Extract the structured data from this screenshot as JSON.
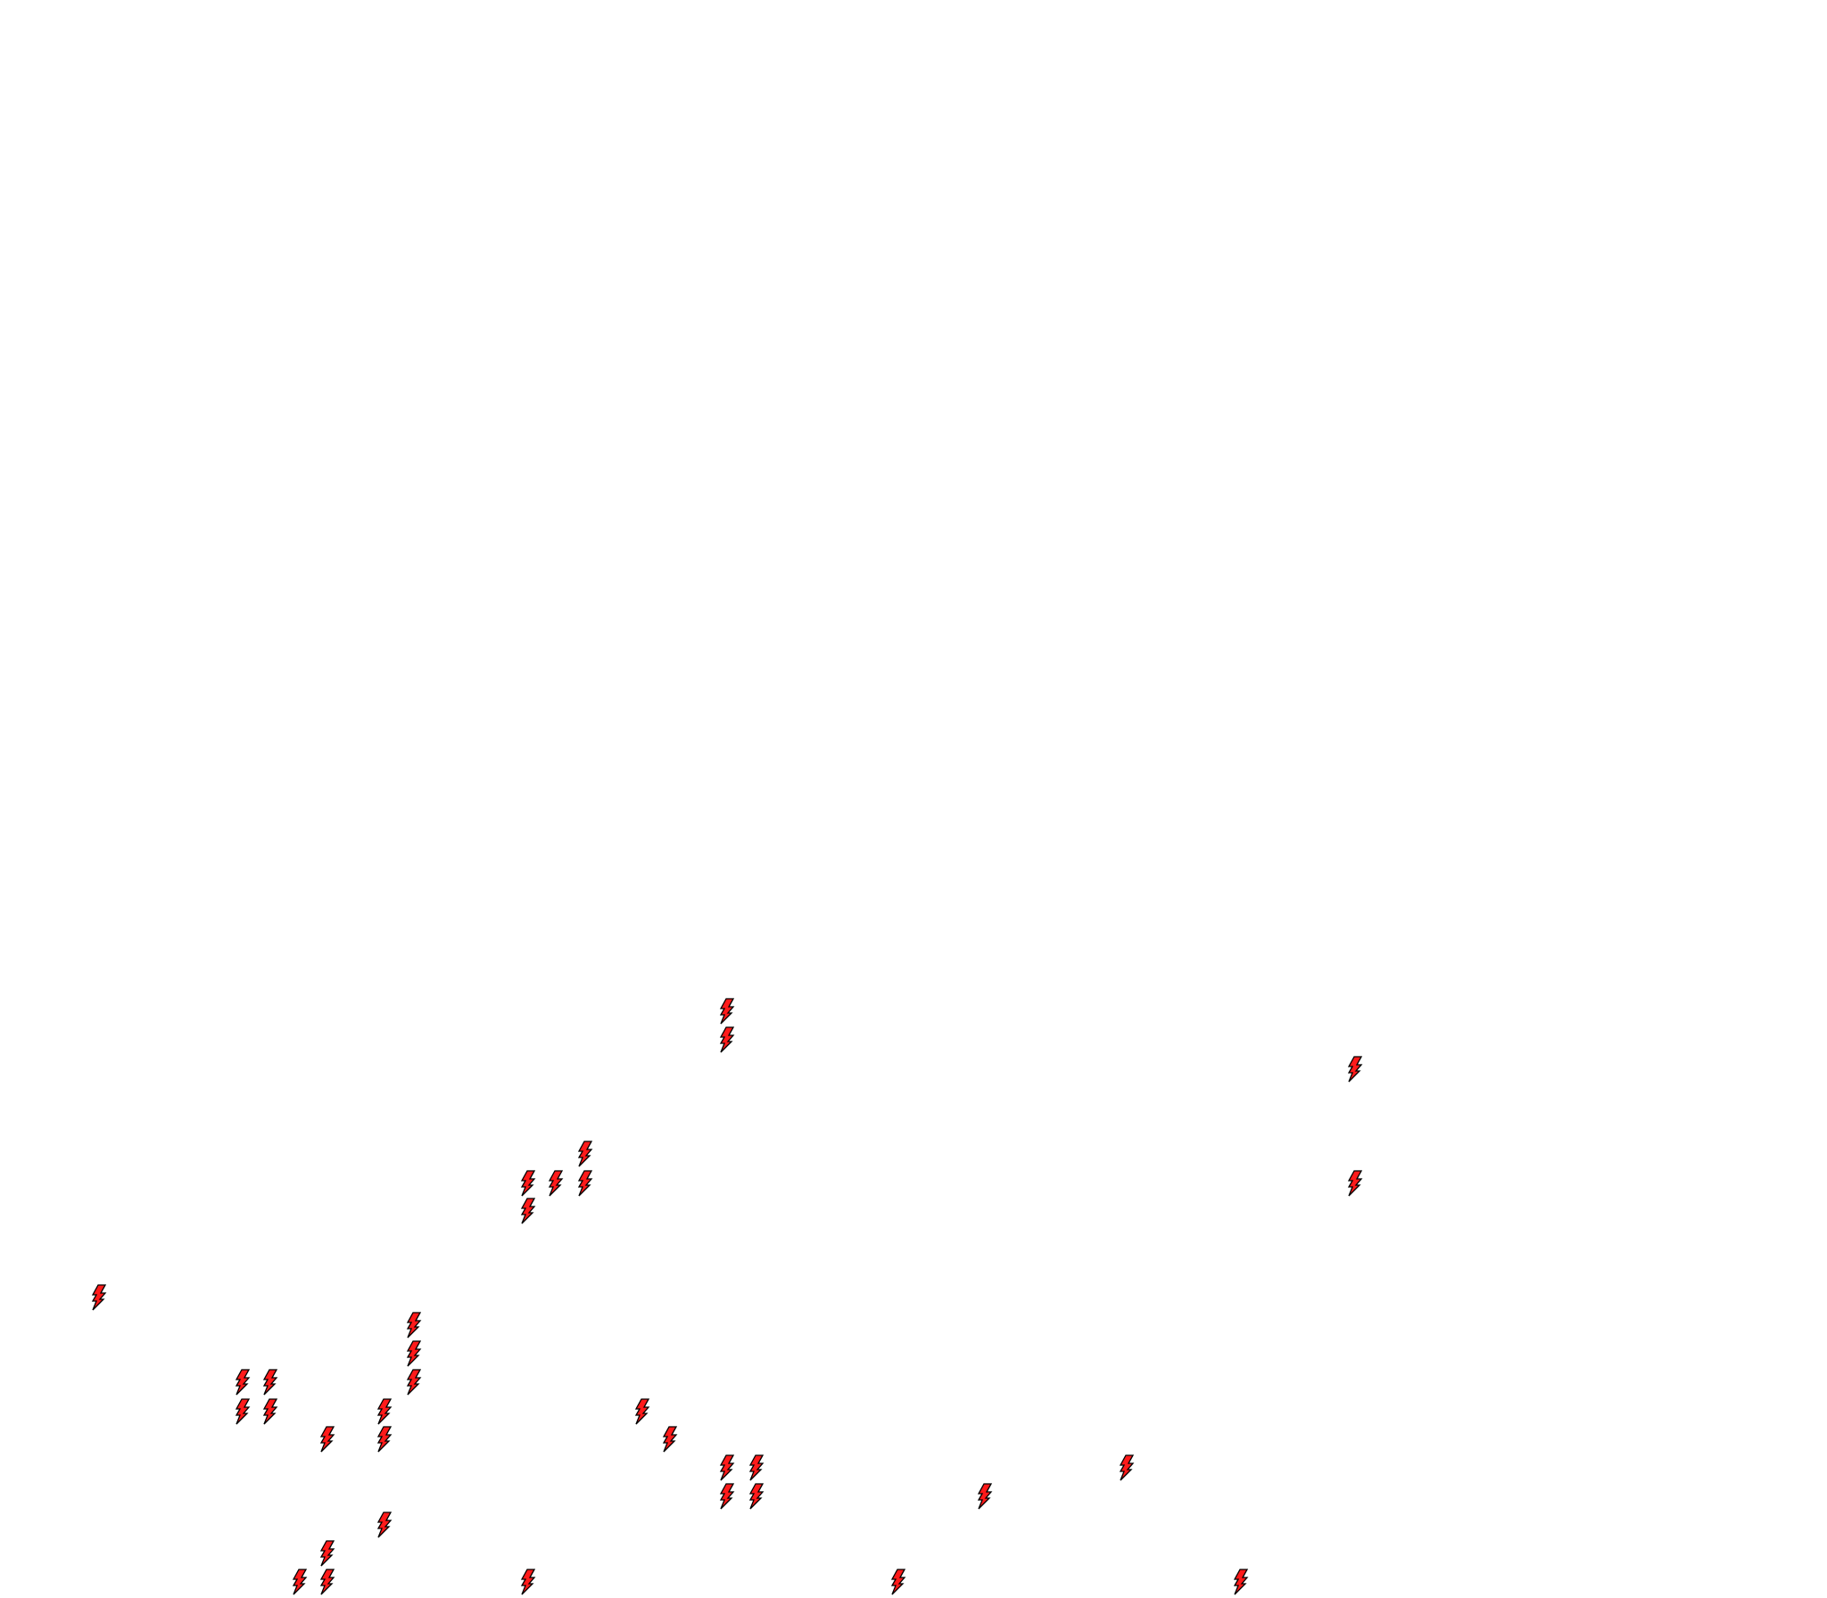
{
  "background_color": "#ffffff",
  "markers": {
    "icon": "lightning-bolt-icon",
    "fill_color": "#ff1a1a",
    "stroke_color": "#000000",
    "count": 35
  }
}
